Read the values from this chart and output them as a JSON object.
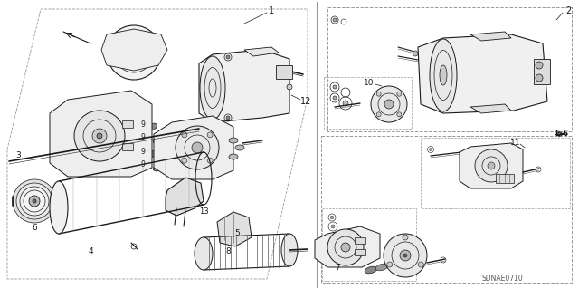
{
  "bg_color": "#ffffff",
  "diagram_code": "SDNAE0710",
  "e_label": "E-6",
  "figsize": [
    6.4,
    3.19
  ],
  "dpi": 100,
  "dark": "#1a1a1a",
  "mid": "#555555",
  "light": "#999999",
  "very_light": "#cccccc"
}
